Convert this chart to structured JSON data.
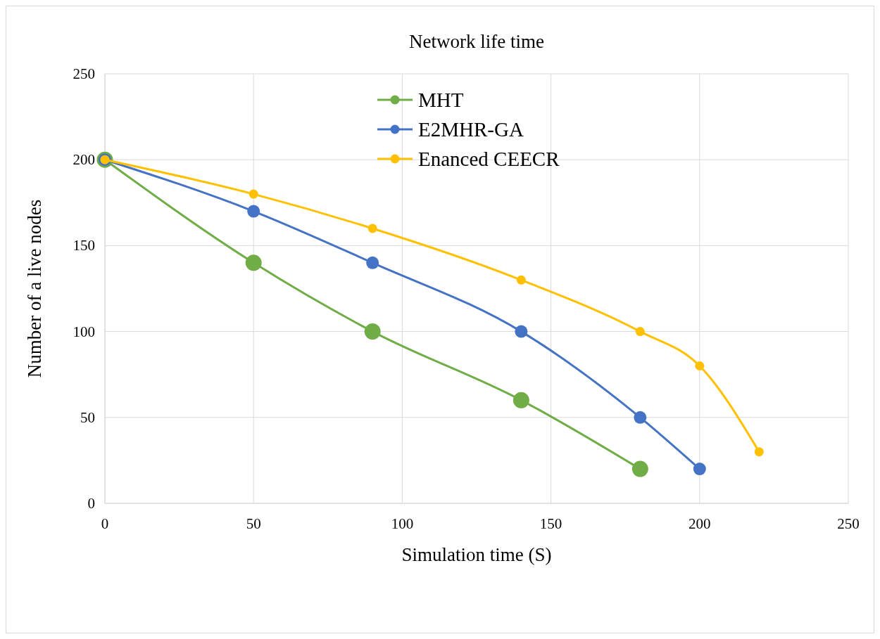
{
  "chart_data": {
    "type": "line",
    "title": "Network life time",
    "xlabel": "Simulation time (S)",
    "ylabel": "Number of a live nodes",
    "xlim": [
      0,
      250
    ],
    "xticks": [
      0,
      50,
      100,
      150,
      200,
      250
    ],
    "ylim": [
      0,
      250
    ],
    "yticks": [
      0,
      50,
      100,
      150,
      200,
      250
    ],
    "grid": true,
    "legend": "top",
    "marker": "circle",
    "line_style": "solid",
    "series": [
      {
        "name": "MHT",
        "color": "#70ad47",
        "x": [
          0,
          50,
          90,
          140,
          180
        ],
        "values": [
          200,
          140,
          100,
          60,
          20
        ]
      },
      {
        "name": "E2MHR-GA",
        "color": "#4472c4",
        "x": [
          0,
          50,
          90,
          140,
          180,
          200
        ],
        "values": [
          200,
          170,
          140,
          100,
          50,
          20
        ]
      },
      {
        "name": "Enanced CEECR",
        "color": "#ffc000",
        "x": [
          0,
          50,
          90,
          140,
          180,
          200,
          220
        ],
        "values": [
          200,
          180,
          160,
          130,
          100,
          80,
          30
        ]
      }
    ]
  }
}
